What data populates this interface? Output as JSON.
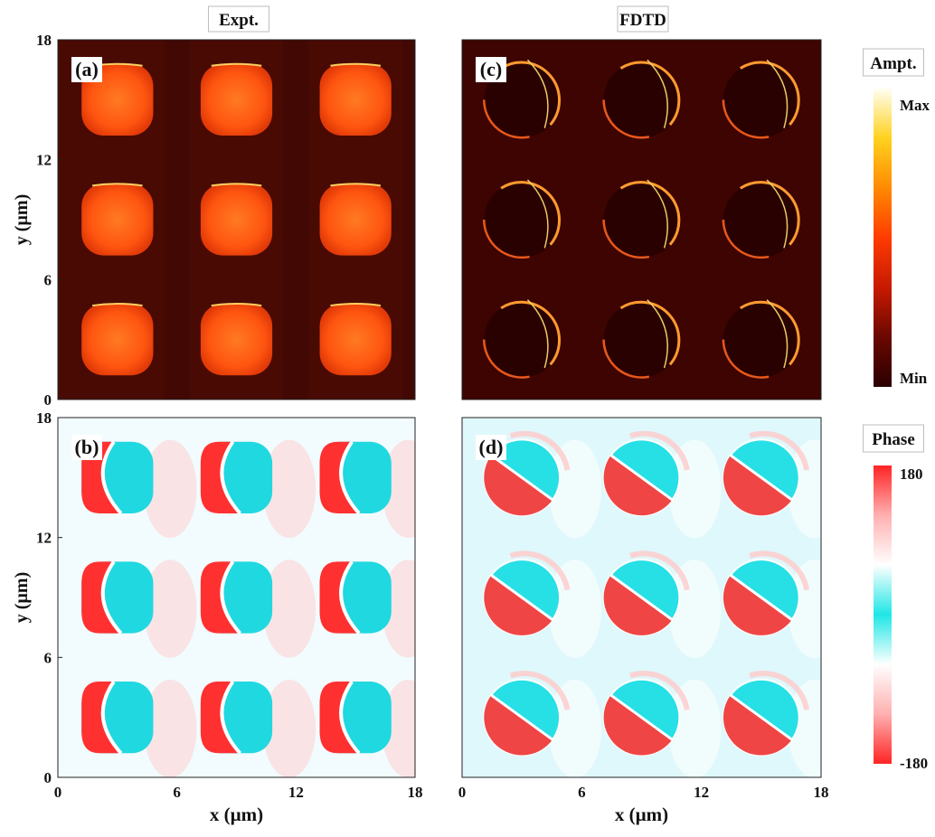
{
  "figure": {
    "col_titles": [
      "Expt.",
      "FDTD"
    ],
    "colorbars": [
      {
        "title": "Ampt.",
        "max_label": "Max",
        "min_label": "Min",
        "stops": [
          "#2a0000",
          "#6a0800",
          "#c81a00",
          "#ff3b00",
          "#ff8a00",
          "#ffd21f",
          "#fffef0"
        ]
      },
      {
        "title": "Phase",
        "max_label": "180",
        "min_label": "-180",
        "stops": [
          "#ff2424",
          "#ffb0b0",
          "#ffffff",
          "#20e6e6",
          "#ffffff",
          "#ffb0b0",
          "#ff2424"
        ]
      }
    ]
  },
  "chart_data": [
    {
      "type": "heatmap",
      "panel_label": "(a)",
      "quantity": "amplitude",
      "source": "Expt.",
      "xlabel": "",
      "ylabel": "y (µm)",
      "xlim": [
        0,
        18
      ],
      "ylim": [
        0,
        18
      ],
      "xticks": [],
      "yticks": [
        0,
        6,
        12,
        18
      ],
      "pillar_centers_um": [
        [
          3,
          3
        ],
        [
          9,
          3
        ],
        [
          15,
          3
        ],
        [
          3,
          9
        ],
        [
          9,
          9
        ],
        [
          15,
          9
        ],
        [
          3,
          15
        ],
        [
          9,
          15
        ],
        [
          15,
          15
        ]
      ],
      "pillar_diameter_um": 3.8,
      "background": "#4a0a04",
      "feature_color": "#ff5a10"
    },
    {
      "type": "heatmap",
      "panel_label": "(b)",
      "quantity": "phase",
      "source": "Expt.",
      "xlabel": "x (µm)",
      "ylabel": "y (µm)",
      "xlim": [
        0,
        18
      ],
      "ylim": [
        0,
        18
      ],
      "xticks": [
        0,
        6,
        12,
        18
      ],
      "yticks": [
        0,
        6,
        12,
        18
      ],
      "pillar_centers_um": [
        [
          3,
          3
        ],
        [
          9,
          3
        ],
        [
          15,
          3
        ],
        [
          3,
          9
        ],
        [
          9,
          9
        ],
        [
          15,
          9
        ],
        [
          3,
          15
        ],
        [
          9,
          15
        ],
        [
          15,
          15
        ]
      ],
      "pillar_diameter_um": 3.8,
      "background": "#f2fbfd",
      "feature_color": "#ff3030"
    },
    {
      "type": "heatmap",
      "panel_label": "(c)",
      "quantity": "amplitude",
      "source": "FDTD",
      "xlabel": "",
      "ylabel": "",
      "xlim": [
        0,
        18
      ],
      "ylim": [
        0,
        18
      ],
      "xticks": [],
      "yticks": [],
      "pillar_centers_um": [
        [
          3,
          3
        ],
        [
          9,
          3
        ],
        [
          15,
          3
        ],
        [
          3,
          9
        ],
        [
          9,
          9
        ],
        [
          15,
          9
        ],
        [
          3,
          15
        ],
        [
          9,
          15
        ],
        [
          15,
          15
        ]
      ],
      "pillar_diameter_um": 3.8,
      "background": "#3d0402",
      "feature_color": "#ffb040"
    },
    {
      "type": "heatmap",
      "panel_label": "(d)",
      "quantity": "phase",
      "source": "FDTD",
      "xlabel": "x (µm)",
      "ylabel": "",
      "xlim": [
        0,
        18
      ],
      "ylim": [
        0,
        18
      ],
      "xticks": [
        0,
        6,
        12,
        18
      ],
      "yticks": [],
      "pillar_centers_um": [
        [
          3,
          3
        ],
        [
          9,
          3
        ],
        [
          15,
          3
        ],
        [
          3,
          9
        ],
        [
          9,
          9
        ],
        [
          15,
          9
        ],
        [
          3,
          15
        ],
        [
          9,
          15
        ],
        [
          15,
          15
        ]
      ],
      "pillar_diameter_um": 3.8,
      "background": "#dff8fb",
      "feature_color": "#f04545"
    }
  ]
}
